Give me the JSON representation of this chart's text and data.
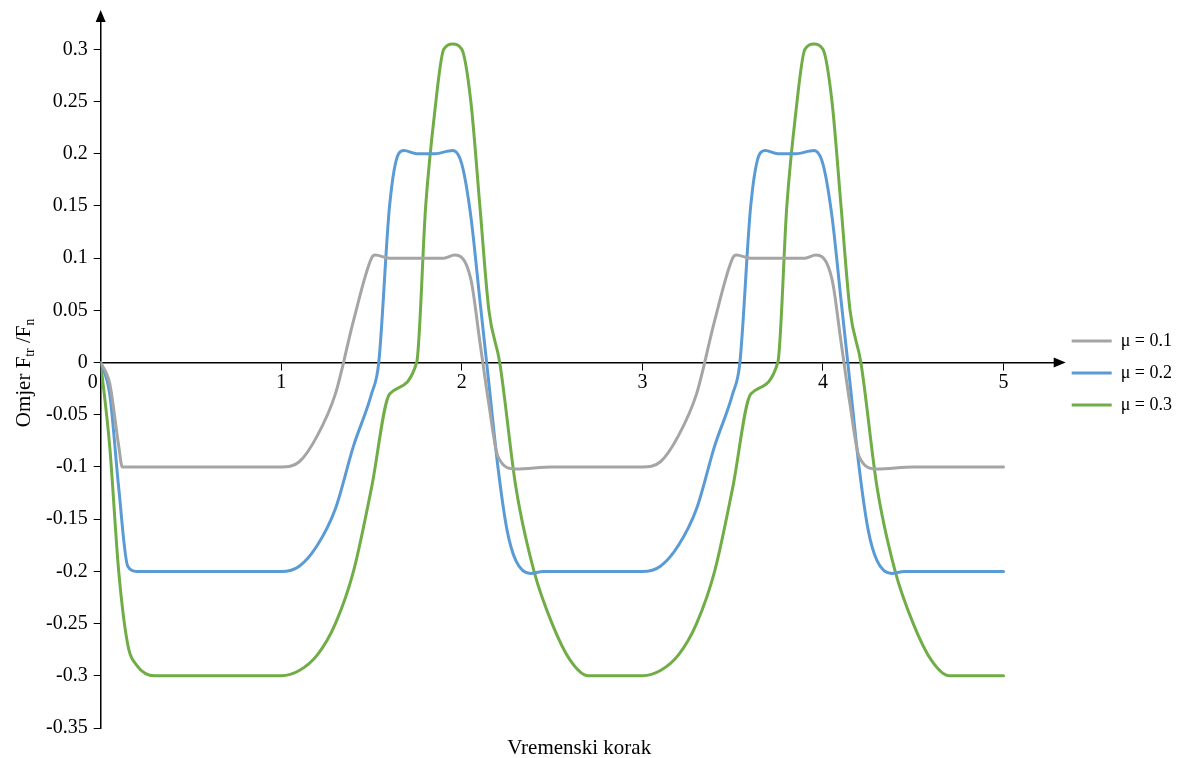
{
  "chart_data": {
    "type": "line",
    "xlabel": "Vremenski korak",
    "ylabel": "Omjer F$_{tr}$ /F$_{n}$",
    "xlim": [
      0,
      5.3
    ],
    "ylim": [
      -0.35,
      0.33
    ],
    "xticks": [
      0,
      1,
      2,
      3,
      4,
      5
    ],
    "yticks": [
      -0.35,
      -0.3,
      -0.25,
      -0.2,
      -0.15,
      -0.1,
      -0.05,
      0,
      0.05,
      0.1,
      0.15,
      0.2,
      0.25,
      0.3
    ],
    "grid": false,
    "legend": "right",
    "marker": "none",
    "line_style": "solid",
    "series": [
      {
        "name": "μ = 0.1",
        "color": "#a5a5a5",
        "x": [
          0,
          0.05,
          0.1,
          0.12,
          0.2,
          1.0,
          1.1,
          1.2,
          1.3,
          1.4,
          1.5,
          1.52,
          1.6,
          1.9,
          1.96,
          2.05,
          2.1,
          2.15,
          2.2,
          2.3,
          2.5,
          3.0,
          3.1,
          3.2,
          3.3,
          3.4,
          3.5,
          3.52,
          3.6,
          3.9,
          3.96,
          4.05,
          4.1,
          4.15,
          4.2,
          4.3,
          4.5,
          5.0
        ],
        "values": [
          0,
          -0.02,
          -0.08,
          -0.1,
          -0.1,
          -0.1,
          -0.095,
          -0.07,
          -0.03,
          0.04,
          0.1,
          0.103,
          0.1,
          0.1,
          0.103,
          0.08,
          0.02,
          -0.04,
          -0.09,
          -0.102,
          -0.1,
          -0.1,
          -0.095,
          -0.07,
          -0.03,
          0.04,
          0.1,
          0.103,
          0.1,
          0.1,
          0.103,
          0.08,
          0.02,
          -0.04,
          -0.09,
          -0.102,
          -0.1,
          -0.1
        ]
      },
      {
        "name": "μ = 0.2",
        "color": "#5b9bd5",
        "x": [
          0,
          0.05,
          0.1,
          0.15,
          0.2,
          1.0,
          1.1,
          1.2,
          1.3,
          1.4,
          1.5,
          1.54,
          1.6,
          1.65,
          1.68,
          1.75,
          1.85,
          1.95,
          2.0,
          2.05,
          2.1,
          2.15,
          2.2,
          2.25,
          2.3,
          2.38,
          2.45,
          3.0,
          3.1,
          3.2,
          3.3,
          3.4,
          3.5,
          3.54,
          3.6,
          3.65,
          3.68,
          3.75,
          3.85,
          3.95,
          4.0,
          4.05,
          4.1,
          4.15,
          4.2,
          4.25,
          4.3,
          4.38,
          4.45,
          5.0
        ],
        "values": [
          0,
          -0.03,
          -0.12,
          -0.195,
          -0.2,
          -0.2,
          -0.195,
          -0.175,
          -0.14,
          -0.08,
          -0.03,
          0,
          0.15,
          0.2,
          0.203,
          0.2,
          0.2,
          0.203,
          0.19,
          0.14,
          0.06,
          -0.02,
          -0.1,
          -0.16,
          -0.19,
          -0.202,
          -0.2,
          -0.2,
          -0.195,
          -0.175,
          -0.14,
          -0.08,
          -0.03,
          0,
          0.15,
          0.2,
          0.203,
          0.2,
          0.2,
          0.203,
          0.19,
          0.14,
          0.06,
          -0.02,
          -0.1,
          -0.16,
          -0.19,
          -0.202,
          -0.2,
          -0.2
        ]
      },
      {
        "name": "μ = 0.3",
        "color": "#70ad47",
        "x": [
          0,
          0.05,
          0.1,
          0.15,
          0.2,
          0.3,
          1.0,
          1.1,
          1.2,
          1.3,
          1.4,
          1.5,
          1.6,
          1.75,
          1.8,
          1.85,
          1.9,
          1.95,
          2.0,
          2.05,
          2.1,
          2.15,
          2.21,
          2.3,
          2.4,
          2.5,
          2.6,
          2.7,
          3.0,
          3.1,
          3.2,
          3.3,
          3.4,
          3.5,
          3.6,
          3.75,
          3.8,
          3.85,
          3.9,
          3.95,
          4.0,
          4.05,
          4.1,
          4.15,
          4.21,
          4.3,
          4.4,
          4.5,
          4.6,
          4.7,
          5.0
        ],
        "values": [
          0,
          -0.08,
          -0.2,
          -0.27,
          -0.29,
          -0.3,
          -0.3,
          -0.295,
          -0.28,
          -0.25,
          -0.2,
          -0.12,
          -0.03,
          0,
          0.15,
          0.24,
          0.3,
          0.305,
          0.3,
          0.25,
          0.15,
          0.05,
          0,
          -0.12,
          -0.2,
          -0.25,
          -0.285,
          -0.3,
          -0.3,
          -0.295,
          -0.28,
          -0.25,
          -0.2,
          -0.12,
          -0.03,
          0,
          0.15,
          0.24,
          0.3,
          0.305,
          0.3,
          0.25,
          0.15,
          0.05,
          0,
          -0.12,
          -0.2,
          -0.25,
          -0.285,
          -0.3,
          -0.3
        ]
      }
    ]
  }
}
